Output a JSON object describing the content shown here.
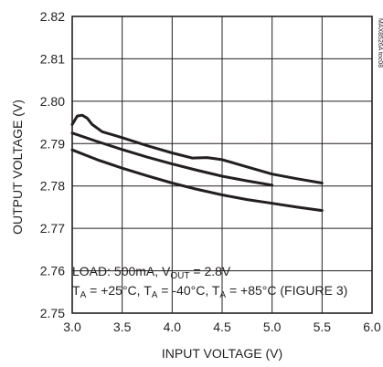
{
  "chart_data": {
    "type": "line",
    "title": "",
    "xlabel": "INPUT VOLTAGE (V)",
    "ylabel": "OUTPUT VOLTAGE (V)",
    "xlim": [
      3.0,
      6.0
    ],
    "ylim": [
      2.75,
      2.82
    ],
    "x_ticks": [
      "3.0",
      "3.5",
      "4.0",
      "4.5",
      "5.0",
      "5.5",
      "6.0"
    ],
    "y_ticks": [
      "2.75",
      "2.76",
      "2.77",
      "2.78",
      "2.79",
      "2.80",
      "2.81",
      "2.82"
    ],
    "grid": true,
    "series": [
      {
        "x": [
          3.0,
          3.05,
          3.1,
          3.15,
          3.2,
          3.3,
          3.5,
          3.75,
          4.0,
          4.2,
          4.35,
          4.5,
          4.75,
          5.0,
          5.25,
          5.5
        ],
        "y": [
          2.7945,
          2.7965,
          2.7967,
          2.796,
          2.7945,
          2.7928,
          2.7914,
          2.7895,
          2.7878,
          2.7866,
          2.7867,
          2.7862,
          2.7845,
          2.7828,
          2.7817,
          2.7807
        ]
      },
      {
        "x": [
          3.0,
          3.25,
          3.5,
          3.75,
          4.0,
          4.25,
          4.5,
          4.75,
          5.0
        ],
        "y": [
          2.7925,
          2.7905,
          2.7886,
          2.7868,
          2.7852,
          2.7837,
          2.7823,
          2.7812,
          2.7802
        ]
      },
      {
        "x": [
          3.0,
          3.25,
          3.5,
          3.75,
          4.0,
          4.25,
          4.5,
          4.75,
          5.0,
          5.25,
          5.5
        ],
        "y": [
          2.7885,
          2.7862,
          2.7842,
          2.7824,
          2.7807,
          2.7792,
          2.7779,
          2.7768,
          2.7759,
          2.775,
          2.7742
        ]
      }
    ],
    "annotation_line1": {
      "a": "LOAD: 500mA, V",
      "sub": "OUT",
      "b": " = 2.8V"
    },
    "annotation_line2": {
      "t1": "T",
      "s1": "A",
      "v1": " = +25°C, ",
      "t2": "T",
      "s2": "A",
      "v2": " = -40°C, ",
      "t3": "T",
      "s3": "A",
      "v3": " = +85°C (FIGURE 3)"
    },
    "corner_code": "MAX8526A toc08"
  }
}
